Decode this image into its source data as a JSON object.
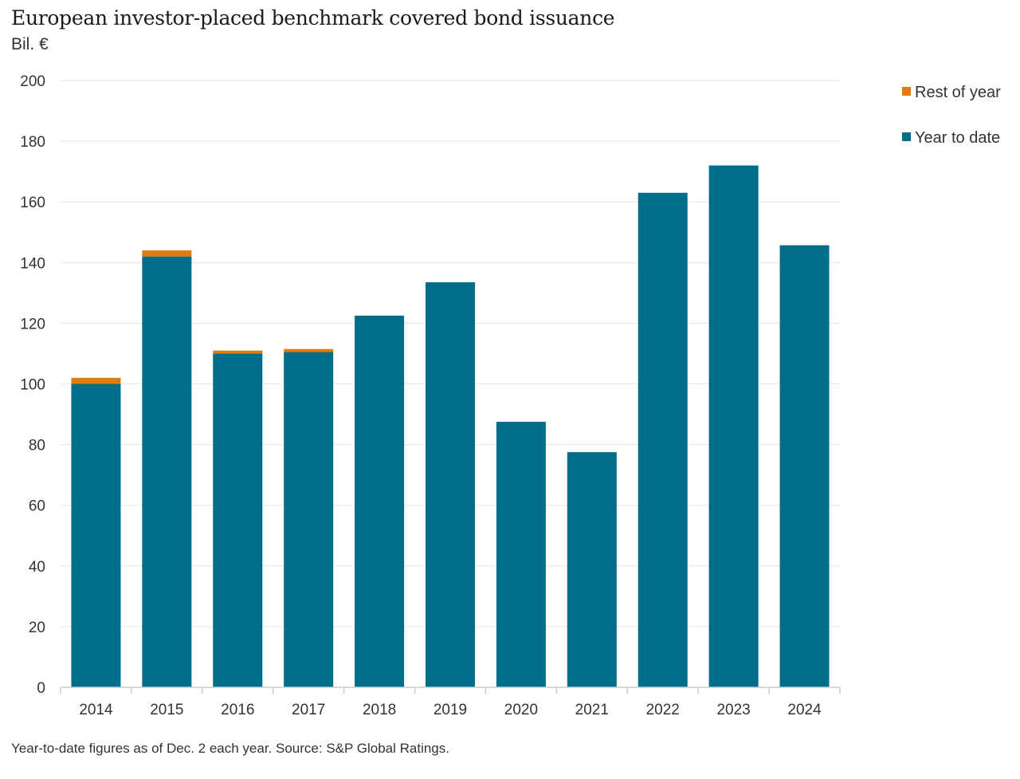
{
  "title": "European investor-placed benchmark covered bond issuance",
  "subtitle": "Bil. €",
  "footnote": "Year-to-date figures as of Dec. 2 each year. Source: S&P Global Ratings.",
  "colors": {
    "year_to_date": "#006d89",
    "rest_of_year": "#e07b10",
    "grid": "#e3e3e3",
    "axis": "#cccccc"
  },
  "chart_data": {
    "type": "bar",
    "stacked": true,
    "title": "European investor-placed benchmark covered bond issuance",
    "ylabel": "Bil. €",
    "xlabel": "",
    "categories": [
      "2014",
      "2015",
      "2016",
      "2017",
      "2018",
      "2019",
      "2020",
      "2021",
      "2022",
      "2023",
      "2024"
    ],
    "series": [
      {
        "name": "Year to date",
        "color": "#006d89",
        "values": [
          100,
          142,
          110,
          110.5,
          122.5,
          133.5,
          87.5,
          77.5,
          163,
          172,
          145.7
        ]
      },
      {
        "name": "Rest of year",
        "color": "#e07b10",
        "values": [
          2,
          2,
          1,
          1,
          0,
          0,
          0,
          0,
          0,
          0,
          0
        ]
      }
    ],
    "ylim": [
      0,
      200
    ],
    "yticks": [
      "0",
      "20",
      "40",
      "60",
      "80",
      "100",
      "120",
      "140",
      "160",
      "180",
      "200"
    ],
    "grid": true,
    "legend": {
      "position": "top-right",
      "entries": [
        {
          "label": "Rest of year",
          "color": "#e07b10"
        },
        {
          "label": "Year to date",
          "color": "#006d89"
        }
      ]
    }
  }
}
